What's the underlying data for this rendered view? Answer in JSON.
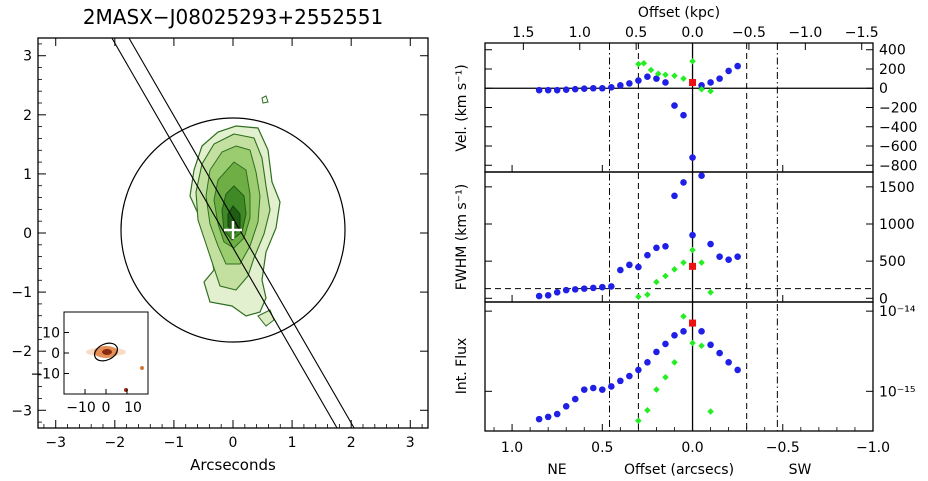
{
  "chart_data": [
    {
      "type": "image",
      "title": "2MASX−J08025293+2552551",
      "xlabel": "Arcseconds",
      "xlim": [
        -3.3,
        3.3
      ],
      "ylim": [
        -3.3,
        3.3
      ],
      "x_ticks": [
        -3,
        -2,
        -1,
        0,
        1,
        2,
        3
      ],
      "y_ticks": [
        -3,
        -2,
        -1,
        0,
        1,
        2,
        3
      ],
      "circle_radius_arcsec": 1.9,
      "slit_position_angle_deg": 150,
      "slit_width_arcsec": 0.25,
      "marker": "cross",
      "inset": {
        "x_ticks": [
          -10,
          0,
          10
        ],
        "y_ticks": [
          10,
          0,
          -10
        ],
        "x_tick_labels": [
          "−10",
          "0",
          "10"
        ],
        "y_tick_labels": [
          "10",
          "0",
          "−10"
        ]
      },
      "colors": {
        "contour": "#2e6f1f",
        "fill": "#5a9a32",
        "inset": "#d2783a"
      }
    },
    {
      "type": "scatter",
      "panel": "velocity",
      "ylabel": "Vel. (km s⁻¹)",
      "xlim": [
        1.15,
        -1.0
      ],
      "ylim": [
        -870,
        470
      ],
      "y_ticks": [
        400,
        200,
        0,
        -200,
        -400,
        -600,
        -800
      ],
      "y_tick_labels": [
        "400",
        "200",
        "0",
        "−200",
        "−400",
        "−600",
        "−800"
      ],
      "zero_line": 0,
      "series": [
        {
          "color": "#1f1fe6",
          "x": [
            0.85,
            0.8,
            0.75,
            0.7,
            0.65,
            0.6,
            0.55,
            0.5,
            0.45,
            0.4,
            0.35,
            0.3,
            0.25,
            0.2,
            0.15,
            0.1,
            0.05,
            0.0,
            -0.05,
            -0.1,
            -0.15,
            -0.2,
            -0.25
          ],
          "y": [
            -20,
            -20,
            -20,
            -15,
            -10,
            -5,
            0,
            0,
            10,
            30,
            50,
            80,
            120,
            100,
            60,
            -180,
            -280,
            -720,
            30,
            60,
            100,
            180,
            230
          ]
        },
        {
          "color": "#22ee22",
          "x": [
            0.3,
            0.27,
            0.23,
            0.19,
            0.15,
            0.1,
            0.05,
            0.0,
            -0.05,
            -0.1
          ],
          "y": [
            250,
            260,
            190,
            150,
            140,
            130,
            100,
            280,
            -10,
            -30
          ]
        },
        {
          "color": "#ee1111",
          "x": [
            0.0
          ],
          "y": [
            60
          ]
        }
      ]
    },
    {
      "type": "scatter",
      "panel": "fwhm",
      "ylabel": "FWHM (km s⁻¹)",
      "xlim": [
        1.15,
        -1.0
      ],
      "ylim": [
        -50,
        1700
      ],
      "y_ticks": [
        1500,
        1000,
        500,
        0
      ],
      "dashed_line": 130,
      "series": [
        {
          "color": "#1f1fe6",
          "x": [
            0.85,
            0.8,
            0.75,
            0.7,
            0.65,
            0.6,
            0.55,
            0.5,
            0.45,
            0.4,
            0.35,
            0.3,
            0.25,
            0.2,
            0.15,
            0.1,
            0.05,
            0.0,
            -0.05,
            -0.1,
            -0.15,
            -0.2,
            -0.25
          ],
          "y": [
            30,
            40,
            80,
            110,
            120,
            130,
            140,
            150,
            160,
            380,
            450,
            420,
            580,
            680,
            700,
            1380,
            1560,
            850,
            1650,
            730,
            560,
            520,
            560
          ]
        },
        {
          "color": "#22ee22",
          "x": [
            0.3,
            0.25,
            0.2,
            0.15,
            0.1,
            0.05,
            0.0,
            -0.05,
            -0.1
          ],
          "y": [
            20,
            50,
            220,
            300,
            390,
            480,
            650,
            480,
            80
          ]
        },
        {
          "color": "#ee1111",
          "x": [
            0.0
          ],
          "y": [
            430
          ]
        }
      ]
    },
    {
      "type": "scatter",
      "panel": "flux",
      "ylabel": "Int. Flux",
      "xlabel": "Offset (arcsecs)",
      "left_label": "NE",
      "right_label": "SW",
      "y_scale": "log",
      "xlim": [
        1.15,
        -1.0
      ],
      "ylim": [
        3.2e-16,
        1.3e-14
      ],
      "y_ticks": [
        1e-14,
        1e-15
      ],
      "y_tick_labels": [
        "10⁻¹⁴",
        "10⁻¹⁵"
      ],
      "x_ticks": [
        1.0,
        0.5,
        0.0,
        -0.5,
        -1.0
      ],
      "x_tick_labels": [
        "1.0",
        "0.5",
        "0.0",
        "−0.5",
        "−1.0"
      ],
      "series": [
        {
          "color": "#1f1fe6",
          "x": [
            0.85,
            0.8,
            0.75,
            0.7,
            0.65,
            0.6,
            0.55,
            0.5,
            0.45,
            0.4,
            0.35,
            0.3,
            0.25,
            0.2,
            0.15,
            0.1,
            0.05,
            0.0,
            -0.05,
            -0.1,
            -0.15,
            -0.2,
            -0.25
          ],
          "y": [
            4.5e-16,
            4.8e-16,
            5.2e-16,
            6.5e-16,
            8e-16,
            1.05e-15,
            1.1e-15,
            1.05e-15,
            1.15e-15,
            1.35e-15,
            1.55e-15,
            1.85e-15,
            2.3e-15,
            3.1e-15,
            3.9e-15,
            5e-15,
            5.6e-15,
            7e-15,
            5.6e-15,
            3.8e-15,
            3e-15,
            2.3e-15,
            1.85e-15
          ]
        },
        {
          "color": "#22ee22",
          "x": [
            0.3,
            0.25,
            0.2,
            0.15,
            0.1,
            0.05,
            0.0,
            -0.05,
            -0.1
          ],
          "y": [
            4.3e-16,
            5.8e-16,
            1.05e-15,
            1.5e-15,
            2.3e-15,
            8.6e-15,
            4e-15,
            3.7e-15,
            5.6e-16
          ]
        },
        {
          "color": "#ee1111",
          "x": [
            0.0
          ],
          "y": [
            7.1e-15
          ]
        }
      ]
    }
  ],
  "vertical_lines": {
    "dashdot": [
      0.46,
      -0.47
    ],
    "dashed": [
      0.3,
      -0.3
    ],
    "solid": [
      0.0
    ]
  },
  "top_axis": {
    "label": "Offset (kpc)",
    "ticks": [
      1.5,
      1.0,
      0.5,
      0.0,
      -0.5,
      -1.0,
      -1.5
    ],
    "tick_labels": [
      "1.5",
      "1.0",
      "0.5",
      "0.0",
      "−0.5",
      "−1.0",
      "−1.5"
    ]
  }
}
